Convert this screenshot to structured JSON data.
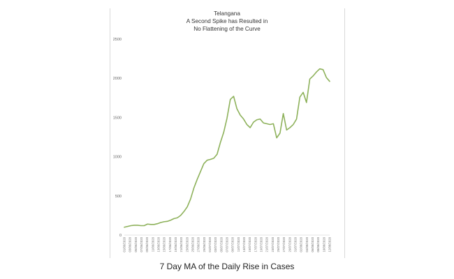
{
  "caption": "7 Day MA of the Daily Rise in Cases",
  "chart_data": {
    "type": "line",
    "title_lines": [
      "Telangana",
      "A Second Spike has Resulted in",
      "No Flattening of the Curve"
    ],
    "xlabel": "",
    "ylabel": "",
    "ylim": [
      0,
      2500
    ],
    "yticks": [
      0,
      500,
      1000,
      1500,
      2000,
      2500
    ],
    "grid": false,
    "legend": "none",
    "line_color": "#8db15a",
    "x_tick_labels": [
      "01/06/2020",
      "03/06/2020",
      "05/06/2020",
      "07/06/2020",
      "09/06/2020",
      "11/06/2020",
      "13/06/2020",
      "15/06/2020",
      "17/06/2020",
      "19/06/2020",
      "21/06/2020",
      "23/06/2020",
      "25/06/2020",
      "27/06/2020",
      "29/06/2020",
      "01/07/2020",
      "03/07/2020",
      "05/07/2020",
      "07/07/2020",
      "09/07/2020",
      "11/07/2020",
      "13/07/2020",
      "15/07/2020",
      "17/07/2020",
      "19/07/2020",
      "21/07/2020",
      "23/07/2020",
      "25/07/2020",
      "27/07/2020",
      "29/07/2020",
      "31/07/2020",
      "02/08/2020",
      "04/08/2020",
      "06/08/2020",
      "08/08/2020",
      "10/08/2020",
      "12/08/2020"
    ],
    "values": [
      100,
      110,
      120,
      125,
      125,
      120,
      120,
      140,
      135,
      135,
      145,
      160,
      170,
      175,
      190,
      210,
      220,
      250,
      300,
      360,
      460,
      600,
      710,
      810,
      910,
      955,
      965,
      980,
      1030,
      1180,
      1310,
      1490,
      1730,
      1770,
      1610,
      1530,
      1480,
      1410,
      1370,
      1440,
      1470,
      1480,
      1430,
      1420,
      1410,
      1420,
      1240,
      1300,
      1550,
      1340,
      1370,
      1410,
      1480,
      1760,
      1820,
      1690,
      1990,
      2030,
      2080,
      2120,
      2110,
      2010,
      1960
    ]
  }
}
